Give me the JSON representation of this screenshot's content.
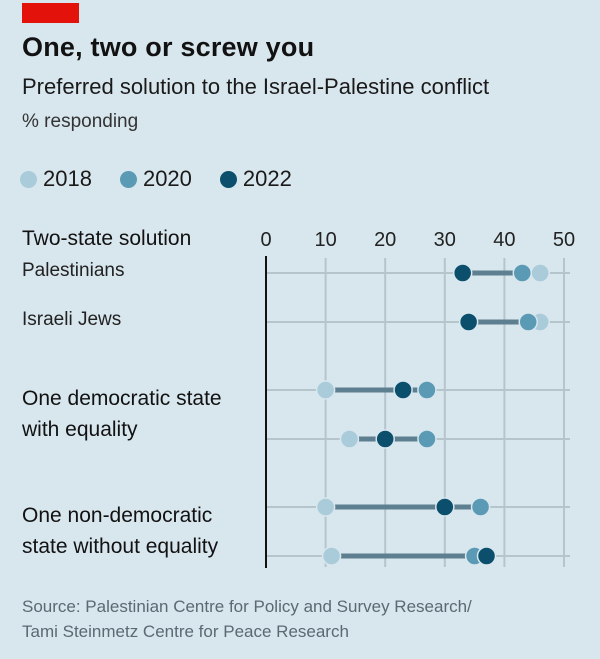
{
  "header": {
    "title": "One, two or screw you",
    "subtitle": "Preferred solution to the Israel-Palestine conflict",
    "unit": "% responding"
  },
  "legend": [
    {
      "label": "2018",
      "color": "#a9cbda"
    },
    {
      "label": "2020",
      "color": "#5b9ab5"
    },
    {
      "label": "2022",
      "color": "#0b4f6c"
    }
  ],
  "sections": [
    {
      "label_lines": [
        "Two-state solution"
      ]
    },
    {
      "label_lines": [
        "One democratic state",
        "with equality"
      ]
    },
    {
      "label_lines": [
        "One non-democratic",
        "state without equality"
      ]
    }
  ],
  "row_labels": [
    "Palestinians",
    "Israeli Jews"
  ],
  "source": [
    "Source: Palestinian Centre for Policy and Survey Research/",
    "Tami Steinmetz Centre for Peace Research"
  ],
  "chart_data": {
    "type": "dot-range",
    "title": "One, two or screw you",
    "subtitle": "Preferred solution to the Israel-Palestine conflict",
    "xlabel": "% responding",
    "xlim": [
      0,
      50
    ],
    "xticks": [
      0,
      10,
      20,
      30,
      40,
      50
    ],
    "grid": true,
    "legend_position": "top-left",
    "series_names": [
      "2018",
      "2020",
      "2022"
    ],
    "rows": [
      {
        "group": "Two-state solution",
        "respondent": "Palestinians",
        "values": {
          "2018": 46,
          "2020": 43,
          "2022": 33
        }
      },
      {
        "group": "Two-state solution",
        "respondent": "Israeli Jews",
        "values": {
          "2018": 46,
          "2020": 44,
          "2022": 34
        }
      },
      {
        "group": "One democratic state with equality",
        "respondent": "Palestinians",
        "values": {
          "2018": 10,
          "2020": 27,
          "2022": 23
        }
      },
      {
        "group": "One democratic state with equality",
        "respondent": "Israeli Jews",
        "values": {
          "2018": 14,
          "2020": 27,
          "2022": 20
        }
      },
      {
        "group": "One non-democratic state without equality",
        "respondent": "Palestinians",
        "values": {
          "2018": 10,
          "2020": 36,
          "2022": 30
        }
      },
      {
        "group": "One non-democratic state without equality",
        "respondent": "Israeli Jews",
        "values": {
          "2018": 11,
          "2020": 35,
          "2022": 37
        }
      }
    ]
  }
}
